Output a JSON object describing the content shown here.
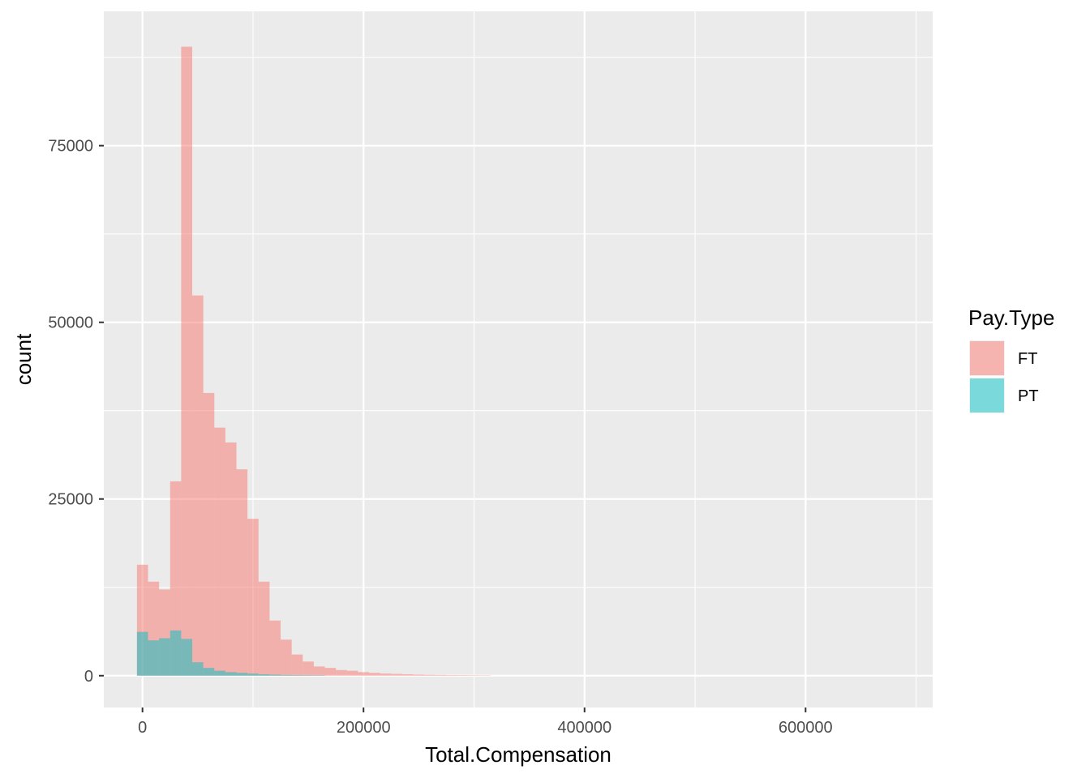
{
  "chart_data": {
    "type": "histogram",
    "xlabel": "Total.Compensation",
    "ylabel": "count",
    "xlim": [
      -35000,
      715000
    ],
    "ylim": [
      -4500,
      94000
    ],
    "x_ticks": [
      0,
      200000,
      400000,
      600000
    ],
    "x_tick_labels": [
      "0",
      "200000",
      "400000",
      "600000"
    ],
    "y_ticks": [
      0,
      25000,
      50000,
      75000
    ],
    "y_tick_labels": [
      "0",
      "25000",
      "50000",
      "75000"
    ],
    "grid": true,
    "bin_width": 10000,
    "bins_start": -5000,
    "legend": {
      "title": "Pay.Type",
      "position": "right"
    },
    "series": [
      {
        "name": "FT",
        "color": "#F8766D",
        "opacity": 0.5,
        "values": [
          15700,
          13300,
          12200,
          27500,
          89000,
          53800,
          40000,
          35100,
          33000,
          29200,
          22200,
          13300,
          7800,
          5100,
          3000,
          2000,
          1300,
          1100,
          800,
          700,
          500,
          400,
          300,
          250,
          200,
          150,
          120,
          100,
          80,
          70,
          60,
          50
        ]
      },
      {
        "name": "PT",
        "color": "#00BFC4",
        "opacity": 0.5,
        "values": [
          6200,
          5000,
          5300,
          6400,
          5200,
          1900,
          1100,
          700,
          500,
          400,
          300,
          200,
          150,
          100,
          80,
          60,
          50
        ]
      }
    ]
  }
}
